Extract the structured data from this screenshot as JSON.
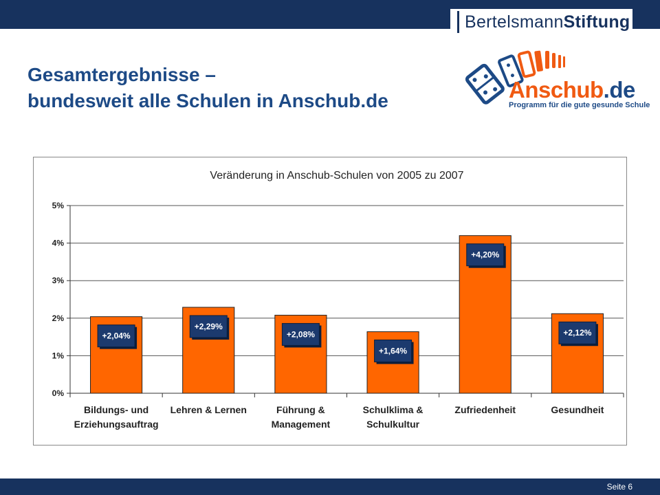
{
  "brand": {
    "name_regular": "Bertelsmann",
    "name_bold": "Stiftung"
  },
  "title": {
    "line1": "Gesamtergebnisse –",
    "line2": "bundesweit alle Schulen in Anschub.de"
  },
  "logo": {
    "name_main": "Anschub",
    "name_suffix": ".de",
    "tagline": "Programm für die gute gesunde Schule"
  },
  "footer": {
    "page": "Seite 6"
  },
  "colors": {
    "bar": "#ff6600",
    "label_box": "#1c3a6e",
    "header": "#17325e",
    "title": "#1d4a86"
  },
  "chart_data": {
    "type": "bar",
    "title": "Veränderung in Anschub-Schulen von 2005 zu 2007",
    "categories": [
      [
        "Bildungs- und",
        "Erziehungsauftrag"
      ],
      [
        "Lehren & Lernen"
      ],
      [
        "Führung &",
        "Management"
      ],
      [
        "Schulklima &",
        "Schulkultur"
      ],
      [
        "Zufriedenheit"
      ],
      [
        "Gesundheit"
      ]
    ],
    "values": [
      2.04,
      2.29,
      2.08,
      1.64,
      4.2,
      2.12
    ],
    "data_labels": [
      "+2,04%",
      "+2,29%",
      "+2,08%",
      "+1,64%",
      "+4,20%",
      "+2,12%"
    ],
    "y_ticks": [
      "0%",
      "1%",
      "2%",
      "3%",
      "4%",
      "5%"
    ],
    "ylim": [
      0,
      5
    ],
    "grid": true,
    "legend": false
  }
}
